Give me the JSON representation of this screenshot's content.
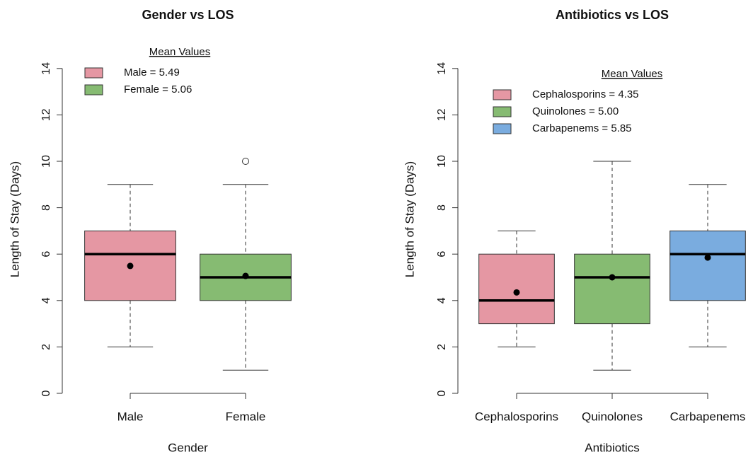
{
  "chart_data": [
    {
      "type": "box",
      "title": "Gender vs LOS",
      "xlabel": "Gender",
      "ylabel": "Length of Stay (Days)",
      "categories": [
        "Male",
        "Female"
      ],
      "colors": [
        "#e597a3",
        "#86bb72"
      ],
      "min": [
        2,
        1
      ],
      "q1": [
        4,
        4
      ],
      "median": [
        6,
        5
      ],
      "q3": [
        7,
        6
      ],
      "max": [
        9,
        9
      ],
      "mean": [
        5.49,
        5.06
      ],
      "outliers": [
        [],
        [
          10
        ]
      ],
      "legend_title": "Mean Values",
      "legend_labels": [
        "Male = 5.49",
        "Female = 5.06"
      ],
      "ylim": [
        0,
        15
      ],
      "yticks": [
        0,
        2,
        4,
        6,
        8,
        10,
        12,
        14
      ]
    },
    {
      "type": "box",
      "title": "Antibiotics vs LOS",
      "xlabel": "Antibiotics",
      "ylabel": "Length of Stay (Days)",
      "categories": [
        "Cephalosporins",
        "Quinolones",
        "Carbapenems"
      ],
      "colors": [
        "#e597a3",
        "#86bb72",
        "#7aacdf"
      ],
      "min": [
        2,
        1,
        2
      ],
      "q1": [
        3,
        3,
        4
      ],
      "median": [
        4,
        5,
        6
      ],
      "q3": [
        6,
        6,
        7
      ],
      "max": [
        7,
        10,
        9
      ],
      "mean": [
        4.35,
        5.0,
        5.85
      ],
      "outliers": [
        [],
        [],
        []
      ],
      "legend_title": "Mean Values",
      "legend_labels": [
        "Cephalosporins = 4.35",
        "Quinolones  = 5.00",
        "Carbapenems = 5.85"
      ],
      "ylim": [
        0,
        15
      ],
      "yticks": [
        0,
        2,
        4,
        6,
        8,
        10,
        12,
        14
      ]
    }
  ]
}
